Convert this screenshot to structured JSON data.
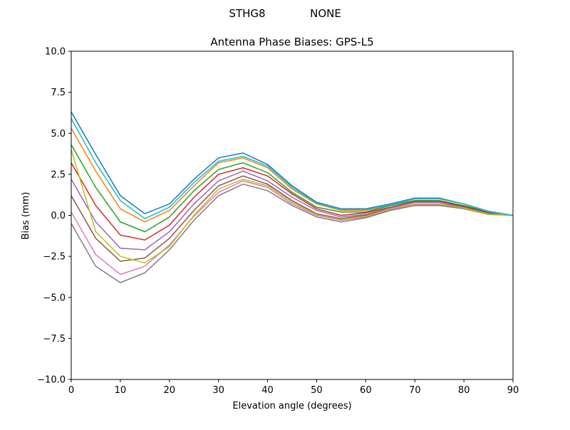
{
  "chart_data": {
    "type": "line",
    "suptitle_left": "STHG8",
    "suptitle_right": "NONE",
    "title": "Antenna Phase Biases: GPS-L5",
    "xlabel": "Elevation angle (degrees)",
    "ylabel": "Bias (mm)",
    "xlim": [
      0,
      90
    ],
    "ylim": [
      -10,
      10
    ],
    "grid": false,
    "xticks": [
      0,
      10,
      20,
      30,
      40,
      50,
      60,
      70,
      80,
      90
    ],
    "yticks": [
      10.0,
      7.5,
      5.0,
      2.5,
      0.0,
      -2.5,
      -5.0,
      -7.5,
      -10.0
    ],
    "x": [
      0,
      5,
      10,
      15,
      20,
      25,
      30,
      35,
      40,
      45,
      50,
      55,
      60,
      65,
      70,
      75,
      80,
      85,
      90
    ],
    "colors": [
      "#1f77b4",
      "#ff7f0e",
      "#2ca02c",
      "#d62728",
      "#9467bd",
      "#8c564b",
      "#e377c2",
      "#7f7f7f",
      "#bcbd22",
      "#17becf"
    ],
    "series": [
      {
        "values": [
          6.3,
          3.7,
          1.2,
          0.1,
          0.7,
          2.2,
          3.5,
          3.8,
          3.1,
          1.8,
          0.8,
          0.4,
          0.4,
          0.7,
          1.05,
          1.05,
          0.7,
          0.25,
          0
        ]
      },
      {
        "values": [
          5.3,
          2.7,
          0.4,
          -0.4,
          0.3,
          1.8,
          3.2,
          3.5,
          2.9,
          1.6,
          0.7,
          0.3,
          0.3,
          0.6,
          1.0,
          1.0,
          0.7,
          0.2,
          0
        ]
      },
      {
        "values": [
          4.3,
          1.7,
          -0.4,
          -1.0,
          -0.1,
          1.5,
          2.8,
          3.2,
          2.6,
          1.4,
          0.5,
          0.2,
          0.2,
          0.6,
          0.9,
          0.9,
          0.6,
          0.2,
          0
        ]
      },
      {
        "values": [
          3.2,
          0.6,
          -1.2,
          -1.5,
          -0.6,
          1.1,
          2.5,
          2.9,
          2.4,
          1.3,
          0.4,
          0.0,
          0.15,
          0.5,
          0.85,
          0.85,
          0.55,
          0.15,
          0
        ]
      },
      {
        "values": [
          2.2,
          -0.4,
          -2.0,
          -2.1,
          -1.0,
          0.7,
          2.1,
          2.7,
          2.1,
          1.1,
          0.3,
          -0.1,
          0.05,
          0.45,
          0.8,
          0.8,
          0.5,
          0.1,
          0
        ]
      },
      {
        "values": [
          1.2,
          -1.4,
          -2.8,
          -2.6,
          -1.4,
          0.3,
          1.8,
          2.4,
          1.9,
          0.9,
          0.1,
          -0.2,
          0.0,
          0.4,
          0.7,
          0.7,
          0.5,
          0.1,
          0
        ]
      },
      {
        "values": [
          0.2,
          -2.4,
          -3.6,
          -3.1,
          -1.8,
          -0.05,
          1.4,
          2.1,
          1.7,
          0.7,
          0.0,
          -0.3,
          -0.1,
          0.35,
          0.65,
          0.65,
          0.45,
          0.07,
          0
        ]
      },
      {
        "values": [
          -0.5,
          -3.1,
          -4.1,
          -3.5,
          -2.1,
          -0.3,
          1.2,
          1.9,
          1.5,
          0.6,
          -0.1,
          -0.4,
          -0.15,
          0.3,
          0.6,
          0.6,
          0.4,
          0.05,
          0
        ]
      },
      {
        "values": [
          4.0,
          -1.0,
          -2.5,
          -2.9,
          -1.9,
          0.0,
          1.6,
          2.2,
          1.8,
          0.8,
          0.05,
          -0.25,
          -0.05,
          0.4,
          0.7,
          0.7,
          0.45,
          0.08,
          0
        ]
      },
      {
        "values": [
          5.9,
          3.2,
          0.9,
          -0.2,
          0.5,
          2.0,
          3.3,
          3.6,
          3.0,
          1.7,
          0.75,
          0.35,
          0.35,
          0.65,
          1.0,
          1.0,
          0.7,
          0.22,
          0
        ]
      }
    ]
  }
}
